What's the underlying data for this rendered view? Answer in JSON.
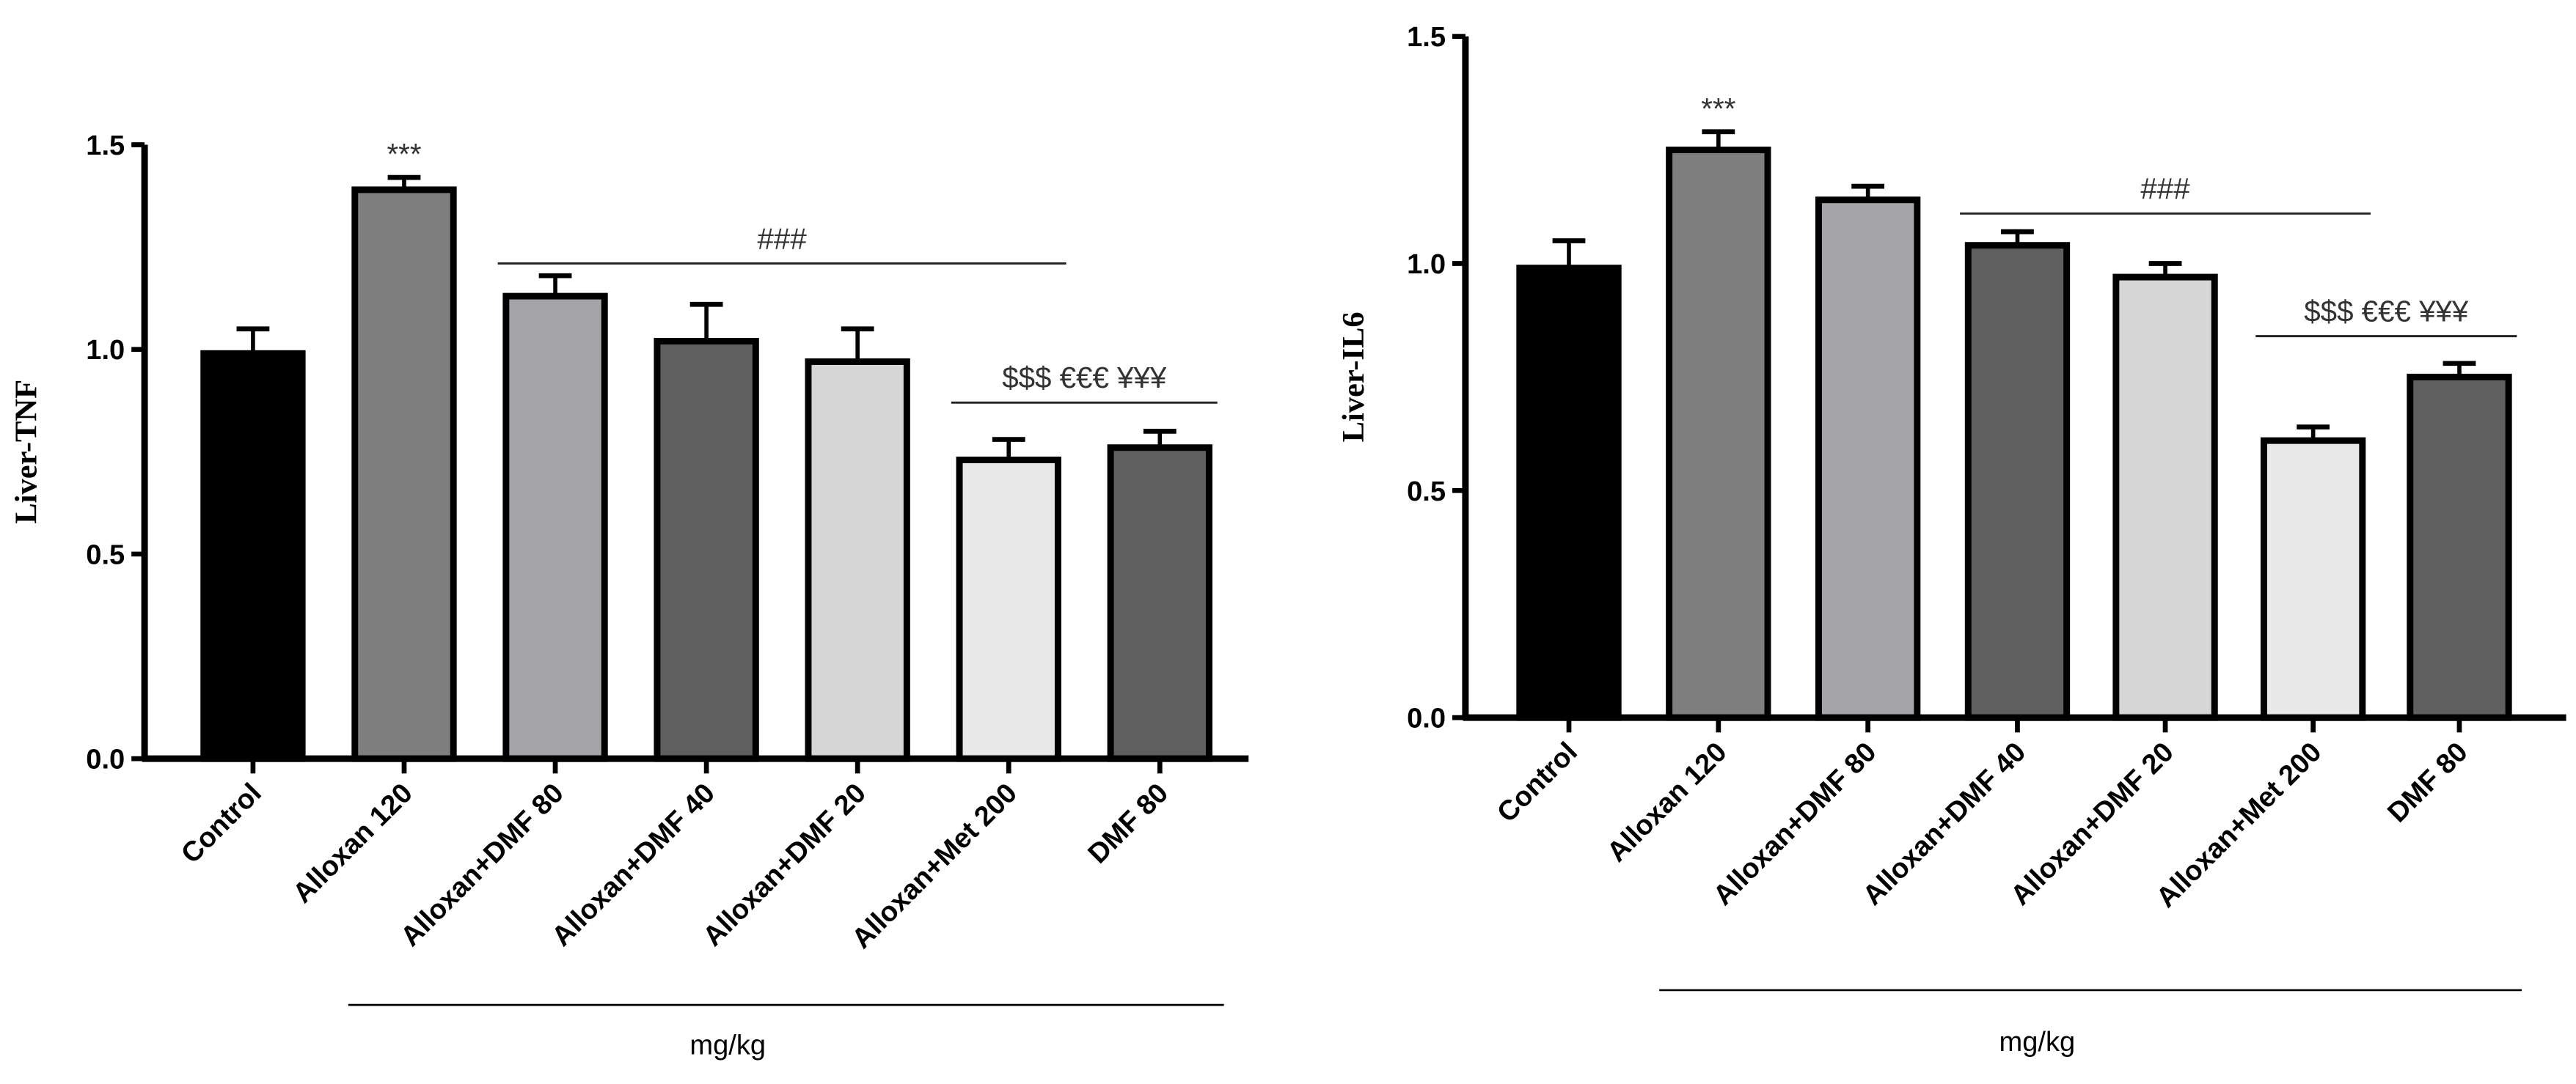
{
  "chart_data": [
    {
      "type": "bar",
      "ylabel": "Liver-TNF",
      "xlabel": "mg/kg",
      "ylim": [
        0,
        1.5
      ],
      "yticks": [
        "0.0",
        "0.5",
        "1.0",
        "1.5"
      ],
      "categories": [
        "Control",
        "Alloxan 120",
        "Alloxan+DMF 80",
        "Alloxan+DMF 40",
        "Alloxan+DMF 20",
        "Alloxan+Met 200",
        "DMF 80"
      ],
      "values": [
        0.99,
        1.39,
        1.13,
        1.02,
        0.97,
        0.73,
        0.76
      ],
      "errors": [
        0.06,
        0.03,
        0.05,
        0.09,
        0.08,
        0.05,
        0.04
      ],
      "colors": [
        "#000000",
        "#7f7f7f",
        "#a5a5a9",
        "#5f5f5f",
        "#d6d6d6",
        "#e8e8e8",
        "#5f5f5f"
      ],
      "annotations": [
        {
          "text": "***",
          "from": 1,
          "to": 1,
          "line": false
        },
        {
          "text": "###",
          "from": 2,
          "to": 5,
          "line": true,
          "level": 1.21
        },
        {
          "text": "$$$  €€€  ¥¥¥",
          "from": 5,
          "to": 6,
          "line": true,
          "level": 0.87
        }
      ]
    },
    {
      "type": "bar",
      "ylabel": "Liver-IL6",
      "xlabel": "mg/kg",
      "ylim": [
        0,
        1.5
      ],
      "yticks": [
        "0.0",
        "0.5",
        "1.0",
        "1.5"
      ],
      "categories": [
        "Control",
        "Alloxan 120",
        "Alloxan+DMF 80",
        "Alloxan+DMF 40",
        "Alloxan+DMF 20",
        "Alloxan+Met 200",
        "DMF 80"
      ],
      "values": [
        0.99,
        1.25,
        1.14,
        1.04,
        0.97,
        0.61,
        0.75
      ],
      "errors": [
        0.06,
        0.04,
        0.03,
        0.03,
        0.03,
        0.03,
        0.03
      ],
      "colors": [
        "#000000",
        "#7f7f7f",
        "#a5a5a9",
        "#5f5f5f",
        "#d6d6d6",
        "#e8e8e8",
        "#5f5f5f"
      ],
      "annotations": [
        {
          "text": "***",
          "from": 1,
          "to": 1,
          "line": false
        },
        {
          "text": "###",
          "from": 3,
          "to": 5,
          "line": true,
          "level": 1.11
        },
        {
          "text": "$$$  €€€  ¥¥¥",
          "from": 5,
          "to": 6,
          "line": true,
          "level": 0.84
        }
      ]
    }
  ]
}
